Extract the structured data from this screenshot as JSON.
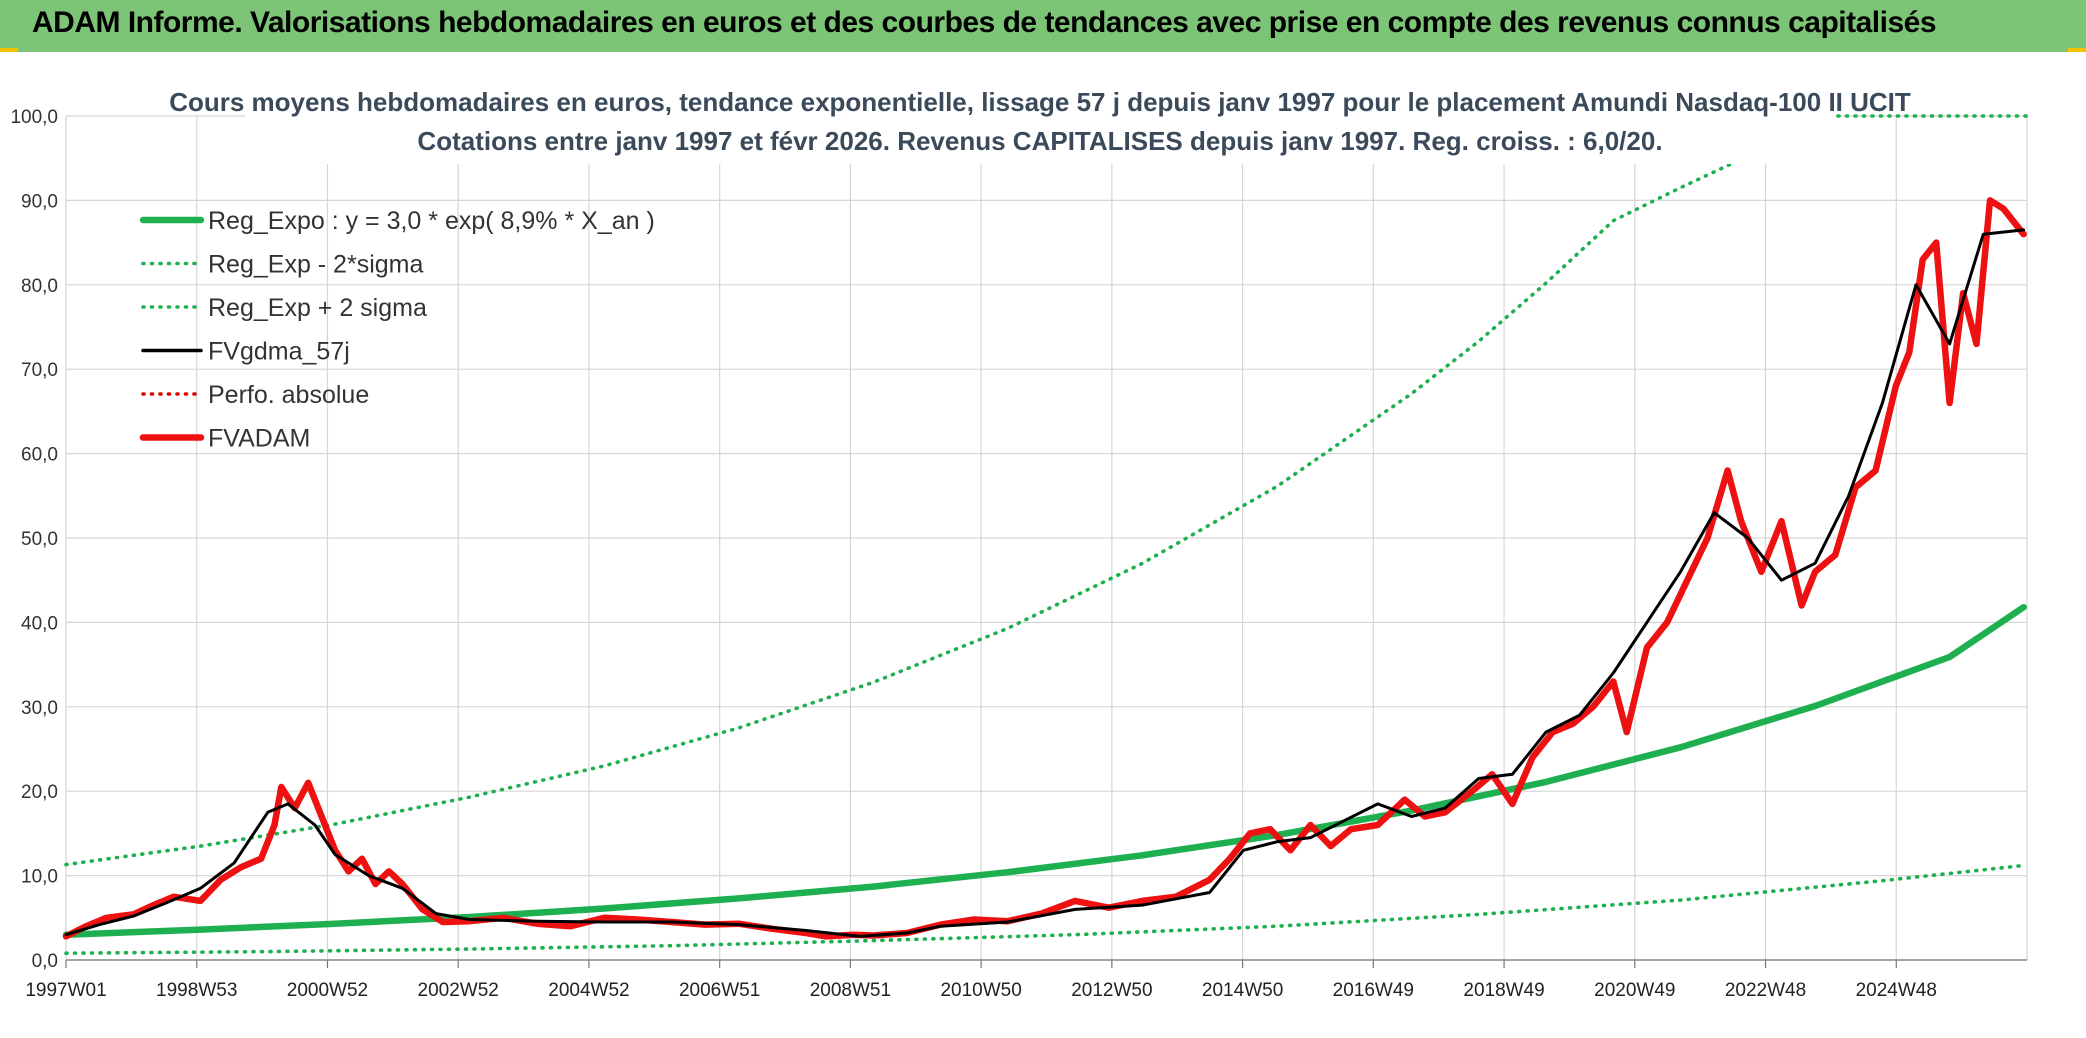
{
  "header": {
    "title": "ADAM Informe. Valorisations hebdomadaires en euros et des courbes de tendances avec prise en compte des revenus connus capitalisés"
  },
  "chart_data": {
    "type": "line",
    "subtitle_line1": "Cours moyens hebdomadaires en euros, tendance exponentielle, lissage 57 j depuis janv 1997 pour le placement Amundi Nasdaq-100 II UCIT",
    "subtitle_line2": "Cotations entre janv 1997 et févr 2026. Revenus CAPITALISES depuis janv 1997. Reg. croiss. : 6,0/20.",
    "ylim": [
      0,
      100
    ],
    "y_ticks": [
      "0,0",
      "10,0",
      "20,0",
      "30,0",
      "40,0",
      "50,0",
      "60,0",
      "70,0",
      "80,0",
      "90,0",
      "100,0"
    ],
    "x_range": [
      1997.0,
      2026.15
    ],
    "x_ticks": [
      "1997W01",
      "1998W53",
      "2000W52",
      "2002W52",
      "2004W52",
      "2006W51",
      "2008W51",
      "2010W50",
      "2012W50",
      "2014W50",
      "2016W49",
      "2018W49",
      "2020W49",
      "2022W48",
      "2024W48"
    ],
    "grid": true,
    "legend_position": "top-left",
    "series": [
      {
        "name": "Reg_Expo : y = 3,0 * exp( 8,9% *  X_an )",
        "color": "#1eb050",
        "style": "solid-thick",
        "x": [
          1997,
          1999,
          2001,
          2003,
          2005,
          2007,
          2009,
          2011,
          2013,
          2015,
          2017,
          2019,
          2021,
          2023,
          2025,
          2026.1
        ],
        "y": [
          3.0,
          3.6,
          4.3,
          5.1,
          6.1,
          7.3,
          8.7,
          10.4,
          12.4,
          14.8,
          17.7,
          21.1,
          25.2,
          30.1,
          35.9,
          41.8
        ]
      },
      {
        "name": "Reg_Exp - 2*sigma",
        "color": "#1eb050",
        "style": "dotted",
        "x": [
          1997,
          2000,
          2003,
          2006,
          2009,
          2012,
          2015,
          2018,
          2021,
          2024,
          2026.1
        ],
        "y": [
          0.8,
          1.0,
          1.3,
          1.7,
          2.3,
          3.0,
          4.0,
          5.4,
          7.1,
          9.4,
          11.2
        ]
      },
      {
        "name": "Reg_Exp + 2 sigma",
        "color": "#1eb050",
        "style": "dotted",
        "x": [
          1997,
          1999,
          2001,
          2003,
          2005,
          2007,
          2009,
          2011,
          2013,
          2015,
          2017,
          2018,
          2019,
          2020,
          2021,
          2021.8
        ],
        "y": [
          11.3,
          13.5,
          16.1,
          19.3,
          23.0,
          27.5,
          32.9,
          39.3,
          47.0,
          56.1,
          67.1,
          73.3,
          80.2,
          87.6,
          91.5,
          94.5
        ]
      },
      {
        "name": "FVgdma_57j",
        "color": "#000000",
        "style": "solid",
        "x": [
          1997,
          1997.5,
          1998,
          1998.5,
          1999,
          1999.5,
          2000,
          2000.3,
          2000.7,
          2001,
          2001.5,
          2002,
          2002.5,
          2003,
          2004,
          2005,
          2006,
          2007,
          2008,
          2008.8,
          2009.5,
          2010,
          2011,
          2012,
          2013,
          2014,
          2014.5,
          2015,
          2015.5,
          2016,
          2016.5,
          2017,
          2017.5,
          2018,
          2018.5,
          2019,
          2019.5,
          2020,
          2020.5,
          2021,
          2021.5,
          2022,
          2022.5,
          2023,
          2023.5,
          2024,
          2024.5,
          2025,
          2025.5,
          2026.1
        ],
        "y": [
          3.0,
          4.2,
          5.2,
          6.8,
          8.5,
          11.5,
          17.5,
          18.5,
          16.0,
          12.5,
          10.0,
          8.5,
          5.5,
          4.8,
          4.6,
          4.5,
          4.5,
          4.2,
          3.5,
          2.8,
          3.2,
          4.0,
          4.5,
          6.0,
          6.5,
          8.0,
          13.0,
          14.0,
          14.5,
          16.5,
          18.5,
          17.0,
          18.0,
          21.5,
          22.0,
          27.0,
          29.0,
          34.0,
          40.0,
          46.0,
          53.0,
          50.0,
          45.0,
          47.0,
          55.0,
          66.0,
          80.0,
          73.0,
          86.0,
          86.5
        ]
      },
      {
        "name": "Perfo. absolue",
        "color": "#e00000",
        "style": "dotted",
        "x": [],
        "y": []
      },
      {
        "name": "FVADAM",
        "color": "#ee1111",
        "style": "solid-thick",
        "x": [
          1997,
          1997.3,
          1997.6,
          1998,
          1998.3,
          1998.6,
          1999,
          1999.3,
          1999.6,
          1999.9,
          2000.1,
          2000.2,
          2000.4,
          2000.6,
          2000.8,
          2001,
          2001.2,
          2001.4,
          2001.6,
          2001.8,
          2002,
          2002.3,
          2002.6,
          2003,
          2003.5,
          2004,
          2004.5,
          2005,
          2005.5,
          2006,
          2006.5,
          2007,
          2007.5,
          2008,
          2008.3,
          2008.7,
          2009,
          2009.5,
          2010,
          2010.5,
          2011,
          2011.5,
          2012,
          2012.5,
          2013,
          2013.5,
          2014,
          2014.3,
          2014.6,
          2014.9,
          2015.2,
          2015.5,
          2015.8,
          2016.1,
          2016.5,
          2016.9,
          2017.2,
          2017.5,
          2017.9,
          2018.2,
          2018.5,
          2018.8,
          2019.1,
          2019.4,
          2019.7,
          2020,
          2020.2,
          2020.5,
          2020.8,
          2021.1,
          2021.4,
          2021.7,
          2021.9,
          2022.2,
          2022.5,
          2022.8,
          2023,
          2023.3,
          2023.6,
          2023.9,
          2024.2,
          2024.4,
          2024.6,
          2024.8,
          2025,
          2025.2,
          2025.4,
          2025.6,
          2025.8,
          2026.1
        ],
        "y": [
          2.8,
          4.0,
          5.0,
          5.4,
          6.5,
          7.5,
          7.0,
          9.5,
          11.0,
          12.0,
          16.0,
          20.5,
          18.0,
          21.0,
          17.0,
          13.0,
          10.5,
          12.0,
          9.0,
          10.5,
          9.0,
          6.0,
          4.5,
          4.6,
          5.0,
          4.3,
          4.0,
          5.0,
          4.8,
          4.5,
          4.2,
          4.3,
          3.7,
          3.2,
          2.8,
          3.0,
          2.9,
          3.2,
          4.2,
          4.8,
          4.6,
          5.5,
          7.0,
          6.2,
          7.0,
          7.5,
          9.5,
          12.0,
          15.0,
          15.5,
          13.0,
          16.0,
          13.5,
          15.5,
          16.0,
          19.0,
          17.0,
          17.5,
          20.0,
          22.0,
          18.5,
          24.0,
          27.0,
          28.0,
          30.0,
          33.0,
          27.0,
          37.0,
          40.0,
          45.0,
          50.0,
          58.0,
          52.0,
          46.0,
          52.0,
          42.0,
          46.0,
          48.0,
          56.0,
          58.0,
          68.0,
          72.0,
          83.0,
          85.0,
          66.0,
          79.0,
          73.0,
          90.0,
          89.0,
          86.0
        ]
      }
    ]
  }
}
